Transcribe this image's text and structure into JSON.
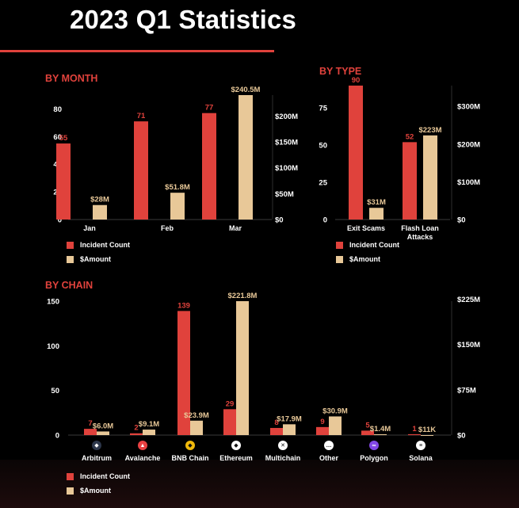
{
  "header": {
    "title": "2023 Q1 Statistics"
  },
  "sections": {
    "by_month": "BY MONTH",
    "by_type": "BY TYPE",
    "by_chain": "BY CHAIN"
  },
  "colors": {
    "count": "#e0423c",
    "amount": "#e8c898",
    "accent": "#e0423c"
  },
  "legend": {
    "count_label": "Incident Count",
    "amount_label": "$Amount"
  },
  "chart_data": [
    {
      "id": "month",
      "type": "bar",
      "title": "BY MONTH",
      "categories": [
        "Jan",
        "Feb",
        "Mar"
      ],
      "series": [
        {
          "name": "Incident Count",
          "axis": "left",
          "values": [
            55,
            71,
            77
          ],
          "labels": [
            "55",
            "71",
            "77"
          ]
        },
        {
          "name": "$Amount",
          "axis": "right",
          "values": [
            28,
            51.8,
            240.5
          ],
          "labels": [
            "$28M",
            "$51.8M",
            "$240.5M"
          ]
        }
      ],
      "ylim_left": [
        0,
        90
      ],
      "yticks_left": [
        0,
        20,
        40,
        60,
        80
      ],
      "ylim_right": [
        0,
        240.5
      ],
      "yticks_right": [
        0,
        50,
        100,
        150,
        200
      ],
      "yticklabels_right": [
        "$0",
        "$50M",
        "$100M",
        "$150M",
        "$200M"
      ]
    },
    {
      "id": "type",
      "type": "bar",
      "title": "BY TYPE",
      "categories": [
        "Exit Scams",
        "Flash Loan Attacks"
      ],
      "series": [
        {
          "name": "Incident Count",
          "axis": "left",
          "values": [
            90,
            52
          ],
          "labels": [
            "90",
            "52"
          ]
        },
        {
          "name": "$Amount",
          "axis": "right",
          "values": [
            31,
            223
          ],
          "labels": [
            "$31M",
            "$223M"
          ]
        }
      ],
      "ylim_left": [
        0,
        90
      ],
      "yticks_left": [
        0,
        25,
        50,
        75
      ],
      "ylim_right": [
        0,
        355
      ],
      "yticks_right": [
        0,
        100,
        200,
        300
      ],
      "yticklabels_right": [
        "$0",
        "$100M",
        "$200M",
        "$300M"
      ]
    },
    {
      "id": "chain",
      "type": "bar",
      "title": "BY CHAIN",
      "categories": [
        "Arbitrum",
        "Avalanche",
        "BNB Chain",
        "Ethereum",
        "Multichain",
        "Other",
        "Polygon",
        "Solana"
      ],
      "series": [
        {
          "name": "Incident Count",
          "axis": "left",
          "values": [
            7,
            2,
            139,
            29,
            8,
            9,
            5,
            1
          ],
          "labels": [
            "7",
            "2",
            "139",
            "29",
            "8",
            "9",
            "5",
            "1"
          ]
        },
        {
          "name": "$Amount",
          "axis": "right",
          "values": [
            6.0,
            9.1,
            23.9,
            221.8,
            17.9,
            30.9,
            1.4,
            0.011
          ],
          "labels": [
            "$6.0M",
            "$9.1M",
            "$23.9M",
            "$221.8M",
            "$17.9M",
            "$30.9M",
            "$1.4M",
            "$11K"
          ]
        }
      ],
      "ylim_left": [
        0,
        150
      ],
      "yticks_left": [
        0,
        50,
        100,
        150
      ],
      "ylim_right": [
        0,
        221.8
      ],
      "yticks_right": [
        0,
        75,
        150,
        225
      ],
      "yticklabels_right": [
        "$0",
        "$75M",
        "$150M",
        "$225M"
      ]
    }
  ],
  "chain_icons": [
    {
      "name": "arbitrum-icon",
      "glyph": "◆",
      "color": "#2d374b"
    },
    {
      "name": "avalanche-icon",
      "glyph": "▲",
      "color": "#e84142"
    },
    {
      "name": "bnb-chain-icon",
      "glyph": "◆",
      "color": "#f0b90b"
    },
    {
      "name": "ethereum-icon",
      "glyph": "◆",
      "color": "#ffffff"
    },
    {
      "name": "multichain-icon",
      "glyph": "✕",
      "color": "#ffffff"
    },
    {
      "name": "other-icon",
      "glyph": "…",
      "color": "#ffffff"
    },
    {
      "name": "polygon-icon",
      "glyph": "∞",
      "color": "#8247e5"
    },
    {
      "name": "solana-icon",
      "glyph": "≡",
      "color": "#ffffff"
    }
  ]
}
